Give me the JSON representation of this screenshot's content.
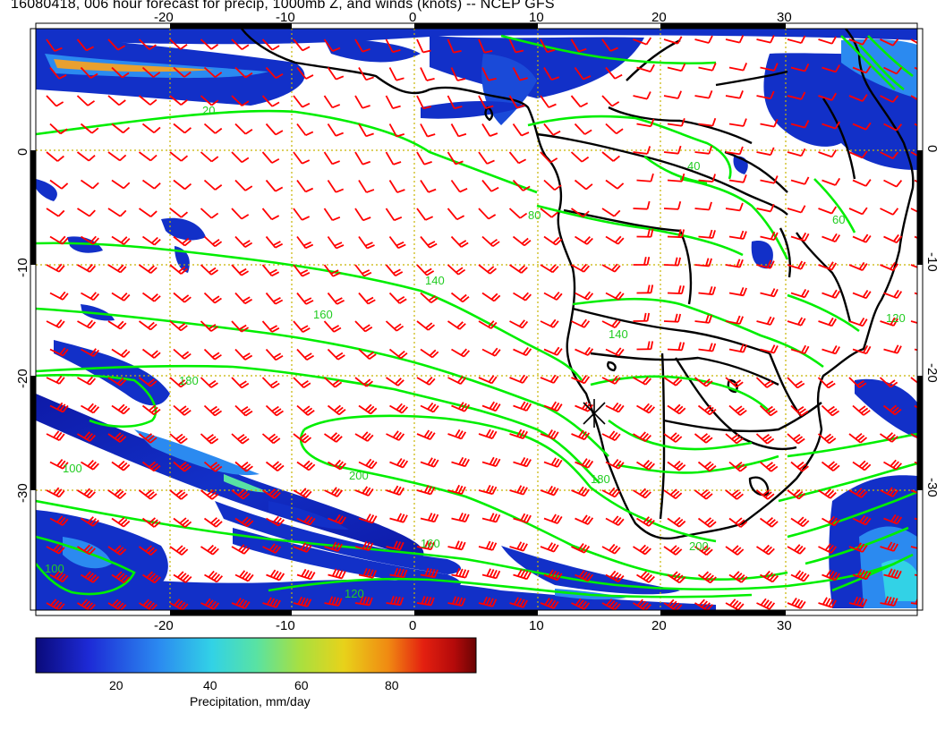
{
  "title": "16080418, 006 hour forecast for precip, 1000mb Z, and winds (knots) -- NCEP GFS",
  "map": {
    "lon_ticks": [
      "-20",
      "-10",
      "0",
      "10",
      "20",
      "30"
    ],
    "lat_ticks": [
      "0",
      "-10",
      "-20",
      "-30"
    ],
    "contour_labels": [
      "20",
      "40",
      "60",
      "80",
      "100",
      "120",
      "140",
      "160",
      "180",
      "200",
      "200",
      "180",
      "160",
      "140",
      "120",
      "100"
    ],
    "colors": {
      "land_outline": "#000000",
      "contour": "#00ee00",
      "wind_barb": "#ff0000",
      "grid": "#c8b400"
    }
  },
  "colorbar": {
    "labels": [
      "20",
      "40",
      "60",
      "80"
    ],
    "title": "Precipitation, mm/day",
    "colors": [
      "#0a0a7a",
      "#1d2ad6",
      "#2b8af0",
      "#32d2e6",
      "#58e2a4",
      "#a8e040",
      "#e8d21a",
      "#f08a12",
      "#e42010",
      "#b40a0a",
      "#6a0404"
    ]
  }
}
